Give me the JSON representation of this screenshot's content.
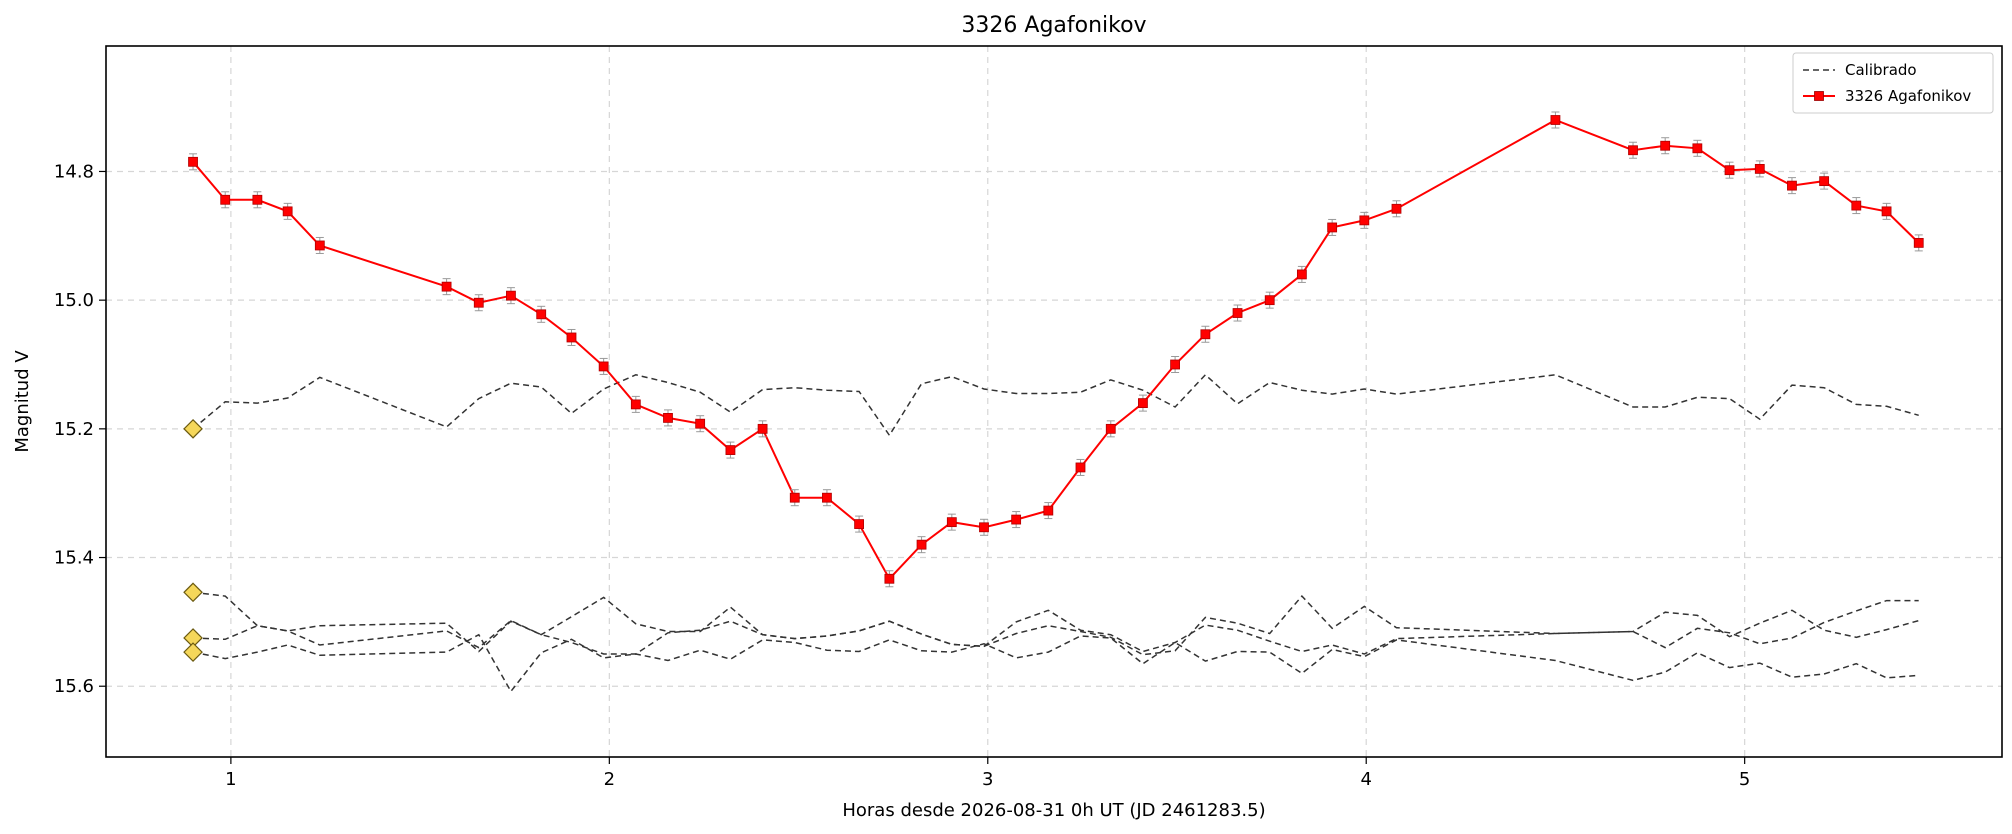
{
  "chart_data": {
    "type": "line",
    "title": "3326 Agafonikov",
    "xlabel": "Horas desde 2026-08-31 0h UT (JD 2461283.5)",
    "ylabel": "Magnitud V",
    "xlim": [
      0.67,
      5.68
    ],
    "ylim": [
      15.71,
      14.605
    ],
    "y_inverted": true,
    "grid": true,
    "legend_position": "top-right",
    "x_ticks": [
      1,
      2,
      3,
      4,
      5
    ],
    "x_tick_labels": [
      "1",
      "2",
      "3",
      "4",
      "5"
    ],
    "y_ticks": [
      14.8,
      15.0,
      15.2,
      15.4,
      15.6
    ],
    "y_tick_labels": [
      "14.8",
      "15.0",
      "15.2",
      "15.4",
      "15.6"
    ],
    "legend": [
      {
        "label": "Calibrado",
        "style": "dashed"
      },
      {
        "label": "3326 Agafonikov",
        "style": "solid-marker"
      }
    ],
    "colors": {
      "target": "#ff0000",
      "calibrated": "#333333",
      "diamond_fill": "#f5d75a",
      "diamond_edge": "#6b5a10",
      "errorbar": "#999999",
      "grid": "#d6d6d6"
    },
    "target_series": {
      "name": "3326 Agafonikov",
      "x": [
        0.9,
        0.985,
        1.07,
        1.15,
        1.235,
        1.57,
        1.655,
        1.74,
        1.82,
        1.9,
        1.985,
        2.07,
        2.155,
        2.24,
        2.32,
        2.405,
        2.49,
        2.575,
        2.66,
        2.74,
        2.825,
        2.905,
        2.99,
        3.075,
        3.16,
        3.245,
        3.325,
        3.41,
        3.495,
        3.575,
        3.66,
        3.745,
        3.83,
        3.91,
        3.995,
        4.08,
        4.5,
        4.705,
        4.79,
        4.875,
        4.96,
        5.04,
        5.125,
        5.21,
        5.295,
        5.375,
        5.46
      ],
      "y": [
        14.785,
        14.844,
        14.844,
        14.862,
        14.915,
        14.979,
        15.004,
        14.993,
        15.022,
        15.058,
        15.103,
        15.162,
        15.183,
        15.192,
        15.233,
        15.2,
        15.307,
        15.307,
        15.348,
        15.433,
        15.38,
        15.345,
        15.353,
        15.341,
        15.327,
        15.26,
        15.2,
        15.16,
        15.1,
        15.053,
        15.02,
        15.0,
        14.96,
        14.887,
        14.876,
        14.858,
        14.72,
        14.767,
        14.76,
        14.764,
        14.798,
        14.796,
        14.822,
        14.815,
        14.853,
        14.862,
        14.911
      ]
    },
    "calibrated_series": [
      {
        "name": "Calibrado",
        "x": [
          0.9,
          0.985,
          1.07,
          1.15,
          1.235,
          1.57,
          1.655,
          1.74,
          1.82,
          1.9,
          1.985,
          2.07,
          2.155,
          2.24,
          2.32,
          2.405,
          2.49,
          2.575,
          2.66,
          2.74,
          2.825,
          2.905,
          2.99,
          3.075,
          3.16,
          3.245,
          3.325,
          3.41,
          3.495,
          3.575,
          3.66,
          3.745,
          3.83,
          3.91,
          3.995,
          4.08,
          4.5,
          4.705,
          4.79,
          4.875,
          4.96,
          5.04,
          5.125,
          5.21,
          5.295,
          5.375,
          5.46
        ],
        "y": [
          15.2,
          15.158,
          15.16,
          15.152,
          15.12,
          15.197,
          15.153,
          15.129,
          15.135,
          15.176,
          15.138,
          15.116,
          15.128,
          15.143,
          15.174,
          15.139,
          15.136,
          15.14,
          15.142,
          15.21,
          15.13,
          15.119,
          15.138,
          15.145,
          15.145,
          15.143,
          15.124,
          15.14,
          15.166,
          15.116,
          15.161,
          15.128,
          15.14,
          15.146,
          15.138,
          15.146,
          15.116,
          15.166,
          15.166,
          15.151,
          15.153,
          15.185,
          15.132,
          15.136,
          15.162,
          15.165,
          15.179
        ]
      },
      {
        "name": "Calibrado",
        "x": [
          0.9,
          0.985,
          1.07,
          1.15,
          1.235,
          1.57,
          1.655,
          1.74,
          1.82,
          1.9,
          1.985,
          2.07,
          2.155,
          2.24,
          2.32,
          2.405,
          2.49,
          2.575,
          2.66,
          2.74,
          2.825,
          2.905,
          2.99,
          3.075,
          3.16,
          3.245,
          3.325,
          3.41,
          3.495,
          3.575,
          3.66,
          3.745,
          3.83,
          3.91,
          3.995,
          4.08,
          4.5,
          4.705,
          4.79,
          4.875,
          4.96,
          5.04,
          5.125,
          5.21,
          5.295,
          5.375,
          5.46
        ],
        "y": [
          15.454,
          15.46,
          15.506,
          15.514,
          15.536,
          15.514,
          15.54,
          15.498,
          15.52,
          15.492,
          15.462,
          15.503,
          15.515,
          15.515,
          15.477,
          15.52,
          15.526,
          15.522,
          15.514,
          15.499,
          15.519,
          15.535,
          15.538,
          15.518,
          15.506,
          15.515,
          15.524,
          15.551,
          15.545,
          15.493,
          15.502,
          15.518,
          15.46,
          15.51,
          15.476,
          15.509,
          15.518,
          15.515,
          15.54,
          15.51,
          15.517,
          15.534,
          15.525,
          15.501,
          15.483,
          15.467,
          15.467
        ]
      },
      {
        "name": "Calibrado",
        "x": [
          0.9,
          0.985,
          1.07,
          1.15,
          1.235,
          1.57,
          1.655,
          1.74,
          1.82,
          1.9,
          1.985,
          2.07,
          2.155,
          2.24,
          2.32,
          2.405,
          2.49,
          2.575,
          2.66,
          2.74,
          2.825,
          2.905,
          2.99,
          3.075,
          3.16,
          3.245,
          3.325,
          3.41,
          3.495,
          3.575,
          3.66,
          3.745,
          3.83,
          3.91,
          3.995,
          4.08,
          4.5,
          4.705,
          4.79,
          4.875,
          4.96,
          5.04,
          5.125,
          5.21,
          5.295,
          5.375,
          5.46
        ],
        "y": [
          15.525,
          15.527,
          15.506,
          15.514,
          15.506,
          15.502,
          15.546,
          15.499,
          15.52,
          15.532,
          15.55,
          15.55,
          15.517,
          15.513,
          15.499,
          15.52,
          15.526,
          15.522,
          15.514,
          15.499,
          15.519,
          15.535,
          15.538,
          15.5,
          15.482,
          15.513,
          15.52,
          15.546,
          15.532,
          15.505,
          15.513,
          15.53,
          15.546,
          15.536,
          15.55,
          15.526,
          15.518,
          15.515,
          15.485,
          15.49,
          15.523,
          15.502,
          15.482,
          15.513,
          15.524,
          15.512,
          15.498
        ]
      },
      {
        "name": "Calibrado",
        "x": [
          0.9,
          0.985,
          1.07,
          1.15,
          1.235,
          1.57,
          1.655,
          1.74,
          1.82,
          1.9,
          1.985,
          2.07,
          2.155,
          2.24,
          2.32,
          2.405,
          2.49,
          2.575,
          2.66,
          2.74,
          2.825,
          2.905,
          2.99,
          3.075,
          3.16,
          3.245,
          3.325,
          3.41,
          3.495,
          3.575,
          3.66,
          3.745,
          3.83,
          3.91,
          3.995,
          4.08,
          4.5,
          4.705,
          4.79,
          4.875,
          4.96,
          5.04,
          5.125,
          5.21,
          5.295,
          5.375,
          5.46
        ],
        "y": [
          15.547,
          15.557,
          15.547,
          15.536,
          15.552,
          15.547,
          15.52,
          15.608,
          15.548,
          15.527,
          15.556,
          15.55,
          15.56,
          15.544,
          15.558,
          15.528,
          15.532,
          15.544,
          15.546,
          15.528,
          15.545,
          15.547,
          15.534,
          15.556,
          15.547,
          15.522,
          15.525,
          15.565,
          15.532,
          15.561,
          15.546,
          15.547,
          15.58,
          15.543,
          15.554,
          15.528,
          15.56,
          15.591,
          15.578,
          15.548,
          15.571,
          15.564,
          15.586,
          15.581,
          15.565,
          15.587,
          15.583
        ]
      }
    ],
    "diamond_markers": {
      "x": [
        0.9,
        0.9,
        0.9,
        0.9
      ],
      "y": [
        15.2,
        15.454,
        15.525,
        15.547
      ]
    }
  }
}
